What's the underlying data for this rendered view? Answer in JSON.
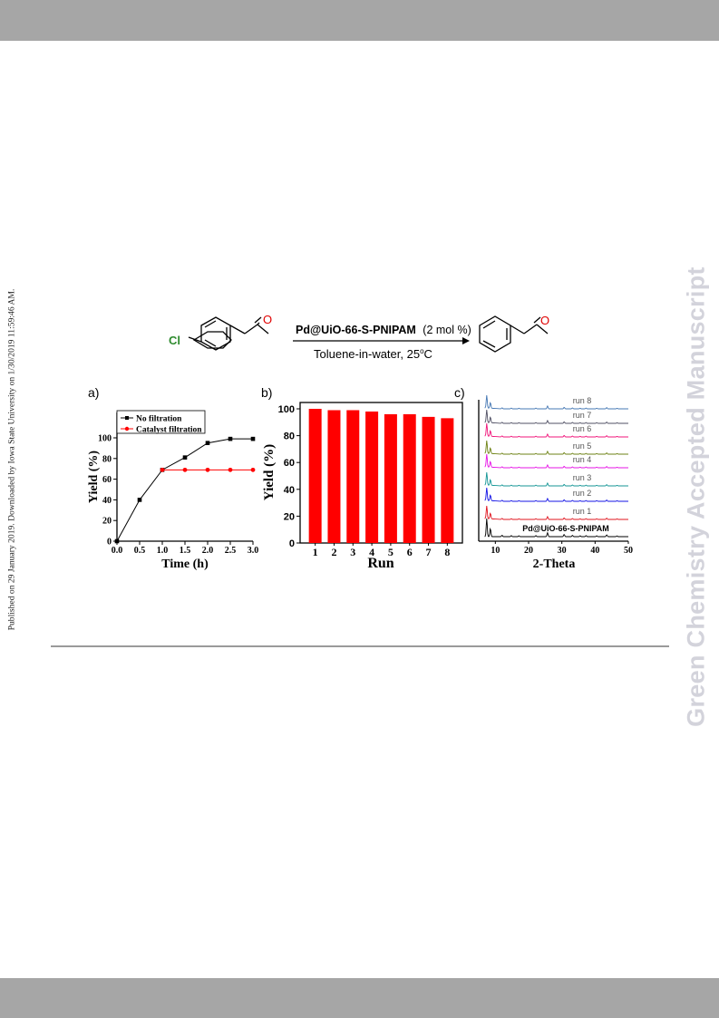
{
  "header_band": "",
  "side_left_text": "Published on 29 January 2019. Downloaded by Iowa State University on 1/30/2019 11:59:46 AM.",
  "side_right_text": "Green Chemistry Accepted Manuscript",
  "scheme": {
    "reactant_label": "Cl",
    "oxygen_label": "O",
    "product_oxygen_label": "O",
    "catalyst_bold": "Pd@UiO-66-S-PNIPAM",
    "catalyst_loading": "(2 mol %)",
    "conditions": "Toluene-in-water, 25",
    "conditions_sup": "o",
    "conditions_unit": "C"
  },
  "panels": {
    "a": "a)",
    "b": "b)",
    "c": "c)"
  },
  "colors": {
    "black_series": "#000000",
    "red_series": "#ff0000",
    "bar_fill": "#ff0000",
    "green_cl": "#2e8b2e",
    "oxygen": "#e00000"
  },
  "chart_data": [
    {
      "type": "line",
      "xlabel": "Time (h)",
      "ylabel": "Yield (%)",
      "xlim": [
        0,
        3
      ],
      "ylim": [
        0,
        100
      ],
      "xticks": [
        "0.0",
        "0.5",
        "1.0",
        "1.5",
        "2.0",
        "2.5",
        "3.0"
      ],
      "yticks": [
        "0",
        "20",
        "40",
        "60",
        "80",
        "100"
      ],
      "legend_placement": "top-left",
      "series": [
        {
          "name": "No filtration",
          "color": "#000000",
          "x": [
            0,
            0.5,
            1.0,
            1.5,
            2.0,
            2.5,
            3.0
          ],
          "y": [
            0,
            40,
            69,
            81,
            95,
            99,
            99
          ]
        },
        {
          "name": "Catalyst filtration",
          "color": "#ff0000",
          "x": [
            1.0,
            1.5,
            2.0,
            2.5,
            3.0
          ],
          "y": [
            69,
            69,
            69,
            69,
            69
          ]
        }
      ]
    },
    {
      "type": "bar",
      "xlabel": "Run",
      "ylabel": "Yield (%)",
      "ylim": [
        0,
        100
      ],
      "yticks": [
        "0",
        "20",
        "40",
        "60",
        "80",
        "100"
      ],
      "categories": [
        "1",
        "2",
        "3",
        "4",
        "5",
        "6",
        "7",
        "8"
      ],
      "values": [
        100,
        99,
        99,
        98,
        96,
        96,
        94,
        93
      ]
    },
    {
      "type": "line",
      "xlabel": "2-Theta",
      "xlim": [
        5,
        50
      ],
      "xticks": [
        "10",
        "20",
        "30",
        "40",
        "50"
      ],
      "series": [
        {
          "name": "Pd@UiO-66-S-PNIPAM",
          "color": "#000000"
        },
        {
          "name": "run 1",
          "color": "#e0141e"
        },
        {
          "name": "run 2",
          "color": "#1414e6"
        },
        {
          "name": "run 3",
          "color": "#149696"
        },
        {
          "name": "run 4",
          "color": "#e614e6"
        },
        {
          "name": "run 5",
          "color": "#6e8214"
        },
        {
          "name": "run 6",
          "color": "#f0147a"
        },
        {
          "name": "run 7",
          "color": "#505064"
        },
        {
          "name": "run 8",
          "color": "#4678b4"
        }
      ]
    }
  ]
}
